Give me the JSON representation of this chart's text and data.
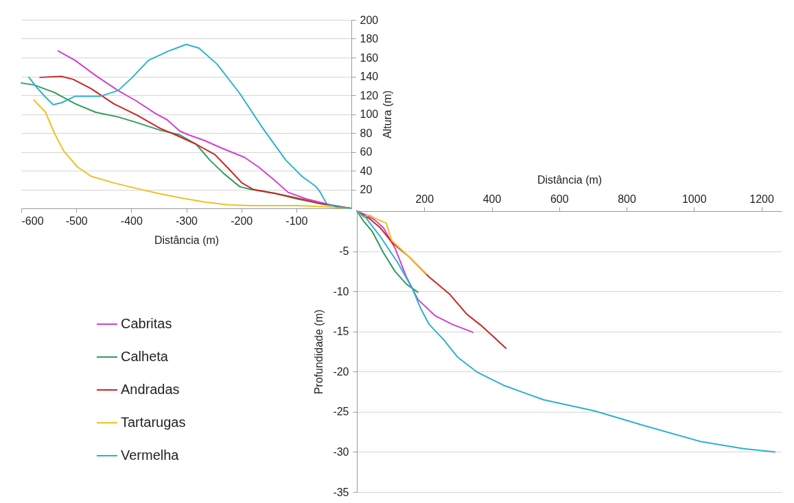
{
  "chart_data": [
    {
      "type": "line",
      "xlabel": "Distância (m)",
      "ylabel": "Altura (m)",
      "xlim": [
        -600,
        0
      ],
      "xticks": [
        -600,
        -500,
        -400,
        -300,
        -200,
        -100
      ],
      "ylim": [
        0,
        200
      ],
      "yticks": [
        20,
        40,
        60,
        80,
        100,
        120,
        140,
        160,
        180,
        200
      ],
      "grid": "y",
      "legend": "bottom left",
      "series": [
        {
          "name": "Cabritas",
          "color": "#d23fd2",
          "x": [
            -533,
            -502,
            -465,
            -424,
            -391,
            -357,
            -335,
            -312,
            -296,
            -267,
            -236,
            -194,
            -169,
            -140,
            -115,
            -82,
            -40,
            -11,
            0
          ],
          "values": [
            167,
            157,
            141,
            125,
            114,
            101,
            94,
            82,
            78,
            72,
            64,
            54,
            44,
            30,
            17,
            10,
            4,
            0.5,
            0
          ]
        },
        {
          "name": "Calheta",
          "color": "#2e9b5a",
          "x": [
            -600,
            -577,
            -540,
            -502,
            -465,
            -424,
            -390,
            -348,
            -312,
            -282,
            -257,
            -232,
            -203,
            -182,
            -140,
            -99,
            -57,
            -24,
            0
          ],
          "values": [
            133,
            131,
            123,
            111,
            102,
            97,
            91,
            83,
            78,
            68,
            51,
            37,
            23,
            20,
            16,
            10,
            5,
            2,
            0
          ]
        },
        {
          "name": "Andradas",
          "color": "#cc2222",
          "x": [
            -566,
            -527,
            -506,
            -473,
            -432,
            -390,
            -348,
            -312,
            -282,
            -248,
            -223,
            -199,
            -178,
            -140,
            -99,
            -57,
            -24,
            0
          ],
          "values": [
            139,
            140,
            137,
            127,
            111,
            99,
            85,
            76,
            68,
            57,
            42,
            27,
            20,
            16,
            11,
            5,
            2,
            0
          ]
        },
        {
          "name": "Tartarugas",
          "color": "#f0c020",
          "x": [
            -577,
            -556,
            -540,
            -523,
            -498,
            -473,
            -432,
            -390,
            -348,
            -307,
            -265,
            -223,
            -182,
            -140,
            -99,
            -49,
            0
          ],
          "values": [
            115,
            102,
            80,
            61,
            44,
            34,
            27,
            21,
            15.5,
            10.7,
            6.5,
            3.6,
            2.9,
            2.9,
            2.9,
            1.7,
            0
          ]
        },
        {
          "name": "Vermelha",
          "color": "#2cb0d0",
          "x": [
            -586,
            -573,
            -556,
            -542,
            -527,
            -502,
            -456,
            -424,
            -398,
            -369,
            -332,
            -300,
            -277,
            -244,
            -203,
            -161,
            -119,
            -90,
            -65,
            -57,
            -45,
            -28,
            0
          ],
          "values": [
            139,
            129,
            118,
            110,
            112,
            119,
            119,
            125,
            139,
            157,
            167,
            174,
            170,
            153,
            122,
            85,
            51,
            34,
            23.5,
            17.5,
            5,
            1.7,
            0
          ]
        }
      ]
    },
    {
      "type": "line",
      "xlabel": "Distância  (m)",
      "ylabel": "Profundidade (m)",
      "xlim": [
        0,
        1260
      ],
      "xticks": [
        200,
        400,
        600,
        800,
        1000,
        1200
      ],
      "ylim": [
        -35,
        0
      ],
      "yticks": [
        -35,
        -30,
        -25,
        -20,
        -15,
        -10,
        -5
      ],
      "grid": "y",
      "series": [
        {
          "color": "#d23fd2",
          "x": [
            0,
            28,
            53,
            79,
            113,
            147,
            181,
            231,
            282,
            344
          ],
          "values": [
            0,
            -0.5,
            -1.1,
            -2.1,
            -4.6,
            -8.2,
            -11,
            -13,
            -14.1,
            -15.1
          ]
        },
        {
          "color": "#2e9b5a",
          "x": [
            0,
            19,
            45,
            79,
            113,
            147,
            181
          ],
          "values": [
            0,
            -1.2,
            -2.5,
            -5.2,
            -7.5,
            -9.1,
            -10.1
          ]
        },
        {
          "color": "#cc2222",
          "x": [
            0,
            36,
            70,
            104,
            155,
            214,
            274,
            325,
            367,
            409,
            442
          ],
          "values": [
            0,
            -0.9,
            -2.1,
            -3.9,
            -5.7,
            -8.2,
            -10.3,
            -12.8,
            -14.2,
            -15.8,
            -17.1
          ]
        },
        {
          "color": "#f0c020",
          "x": [
            0,
            19,
            38,
            53,
            87,
            104,
            155,
            206
          ],
          "values": [
            0,
            -0.7,
            -0.5,
            -0.9,
            -1.5,
            -3.7,
            -5.7,
            -7.8
          ]
        },
        {
          "color": "#2cb0d0",
          "x": [
            0,
            28,
            70,
            121,
            164,
            189,
            214,
            257,
            299,
            358,
            435,
            553,
            706,
            850,
            1019,
            1147,
            1240
          ],
          "values": [
            0,
            -0.9,
            -3.2,
            -6.4,
            -9.6,
            -12.1,
            -14.1,
            -16,
            -18.2,
            -20.1,
            -21.7,
            -23.5,
            -24.9,
            -26.7,
            -28.7,
            -29.6,
            -30
          ]
        }
      ]
    }
  ]
}
